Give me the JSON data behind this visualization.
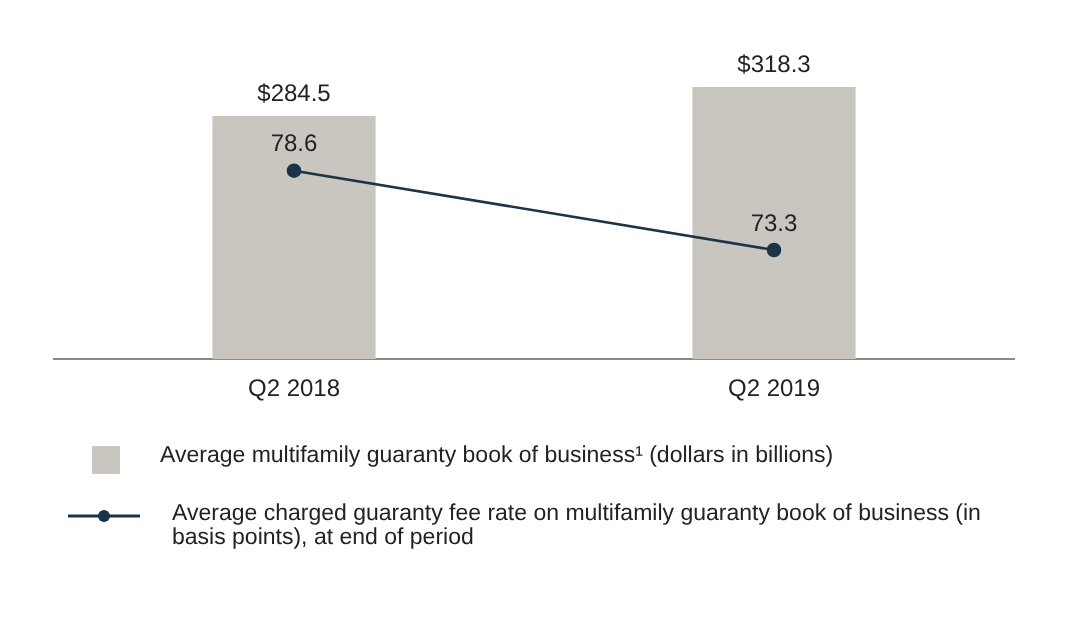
{
  "chart_data": {
    "type": "bar",
    "categories": [
      "Q2 2018",
      "Q2 2019"
    ],
    "series": [
      {
        "name": "Average multifamily guaranty book of business¹ (dollars in billions)",
        "color": "#c9c6c0",
        "values": [
          284.5,
          318.3
        ],
        "value_labels": [
          "$284.5",
          "$318.3"
        ]
      },
      {
        "name": "Average charged guaranty fee rate on multifamily guaranty book of business (in basis points), at end of period",
        "type": "line",
        "axis": "y2",
        "color": "#1c3447",
        "values": [
          78.6,
          73.3
        ],
        "value_labels": [
          "78.6",
          "73.3"
        ]
      }
    ],
    "tick_labels": "x",
    "grid": false,
    "legend": "bottom",
    "marker": "circle",
    "line_style": "solid"
  }
}
